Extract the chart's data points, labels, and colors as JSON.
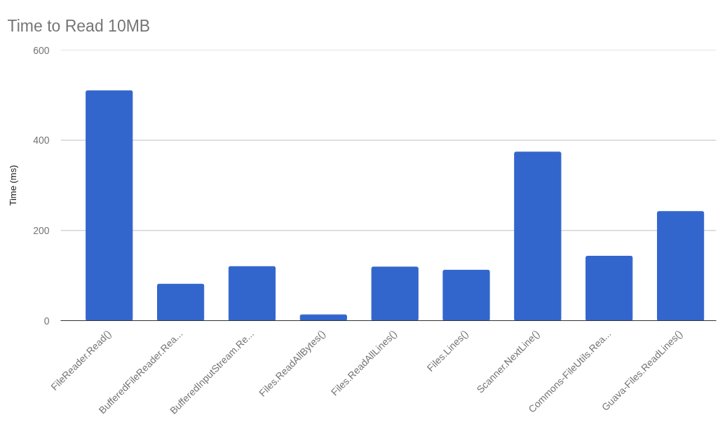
{
  "chart_data": {
    "type": "bar",
    "title": "Time to Read 10MB",
    "ylabel": "Time (ms)",
    "categories": [
      "FileReader.Read()",
      "BufferedFileReader.Rea...",
      "BufferedInputStream.Re...",
      "Files.ReadAllBytes()",
      "Files.ReadAllLines()",
      "Files.Lines()",
      "Scanner.NextLine()",
      "Commons-FileUtils.Rea...",
      "Guava-Files.ReadLines()"
    ],
    "values": [
      510,
      81,
      120,
      13,
      119,
      112,
      374,
      143,
      242
    ],
    "color": "#3366cc",
    "ylim": [
      0,
      600
    ],
    "yticks": [
      0,
      200,
      400,
      600
    ],
    "grid": "y"
  }
}
